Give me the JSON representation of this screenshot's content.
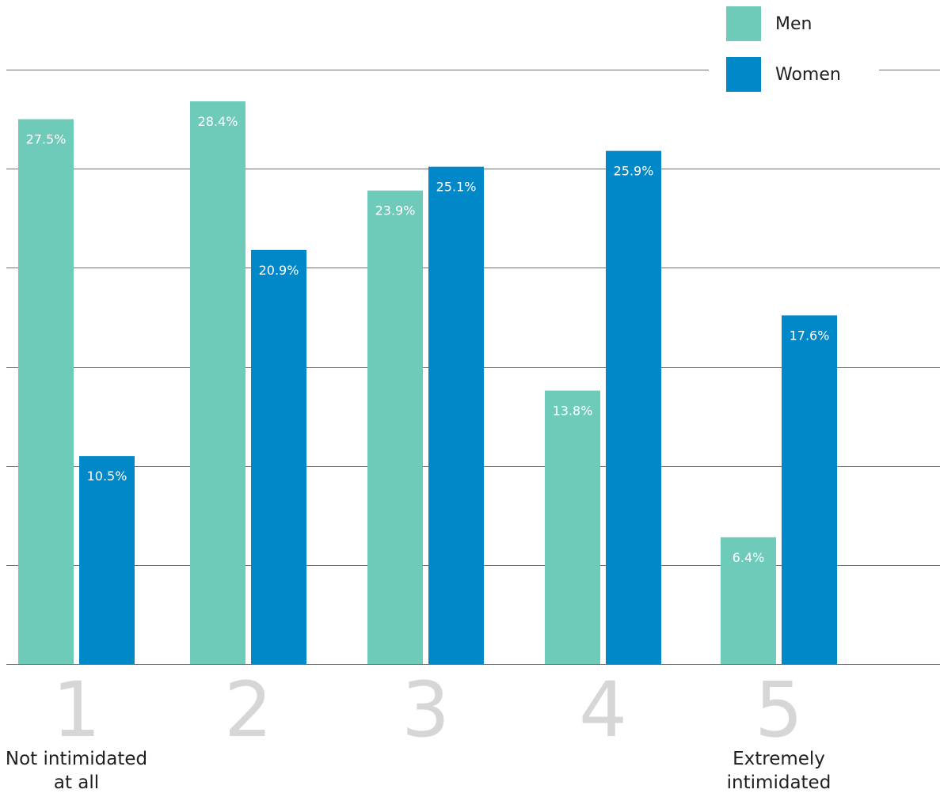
{
  "colors": {
    "men": "#6ecbb9",
    "women": "#0088c8",
    "gridline": "#707070",
    "category_number": "#d6d6d6",
    "bar_label": "#ffffff",
    "text": "#1f1f1f"
  },
  "legend": {
    "men_label": "Men",
    "women_label": "Women"
  },
  "chart_data": {
    "type": "bar",
    "title": "",
    "xlabel": "",
    "ylabel": "",
    "categories": [
      "1",
      "2",
      "3",
      "4",
      "5"
    ],
    "category_captions": [
      "Not intimidated\nat all",
      "",
      "",
      "",
      "Extremely\nintimidated"
    ],
    "series": [
      {
        "name": "Men",
        "values": [
          27.5,
          28.4,
          23.9,
          13.8,
          6.4
        ],
        "labels": [
          "27.5%",
          "28.4%",
          "23.9%",
          "13.8%",
          "6.4%"
        ]
      },
      {
        "name": "Women",
        "values": [
          10.5,
          20.9,
          25.1,
          25.9,
          17.6
        ],
        "labels": [
          "10.5%",
          "20.9%",
          "25.1%",
          "25.9%",
          "17.6%"
        ]
      }
    ],
    "ylim": [
      0,
      30
    ],
    "grid": true,
    "legend_position": "top-right",
    "data_labels": true
  }
}
